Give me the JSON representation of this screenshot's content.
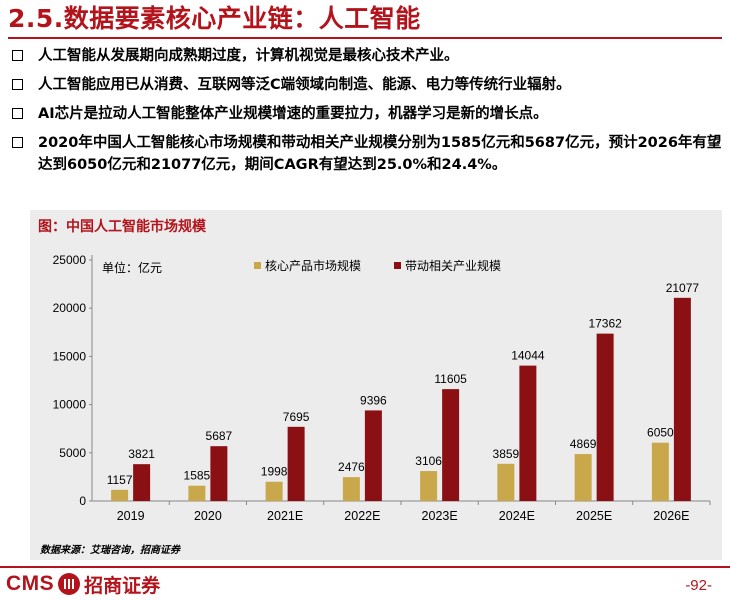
{
  "header": {
    "title": "2.5.数据要素核心产业链：人工智能"
  },
  "bullets": [
    "人工智能从发展期向成熟期过度，计算机视觉是最核心技术产业。",
    "人工智能应用已从消费、互联网等泛C端领域向制造、能源、电力等传统行业辐射。",
    "AI芯片是拉动人工智能整体产业规模增速的重要拉力，机器学习是新的增长点。",
    "2020年中国人工智能核心市场规模和带动相关产业规模分别为1585亿元和5687亿元，预计2026年有望达到6050亿元和21077亿元，期间CAGR有望达到25.0%和24.4%。"
  ],
  "chart_caption": "图：中国人工智能市场规模",
  "unit_label": "单位：亿元",
  "source": "数据来源：艾瑞咨询，招商证券",
  "footer": {
    "brand_en": "CMS",
    "brand_cn": "招商证券",
    "page": "-92-"
  },
  "colors": {
    "accent": "#b3141c",
    "series_core": "#c9a84c",
    "series_related": "#8b1014",
    "panel_bg": "#ececec"
  },
  "chart_data": {
    "type": "bar",
    "title": "中国人工智能市场规模",
    "categories": [
      "2019",
      "2020",
      "2021E",
      "2022E",
      "2023E",
      "2024E",
      "2025E",
      "2026E"
    ],
    "series": [
      {
        "name": "核心产品市场规模",
        "values": [
          1157,
          1585,
          1998,
          2476,
          3106,
          3859,
          4869,
          6050
        ]
      },
      {
        "name": "带动相关产业规模",
        "values": [
          3821,
          5687,
          7695,
          9396,
          11605,
          14044,
          17362,
          21077
        ]
      }
    ],
    "yticks": [
      0,
      5000,
      10000,
      15000,
      20000,
      25000
    ],
    "ylim": [
      0,
      25000
    ],
    "grid": false,
    "legend": "top-center"
  }
}
